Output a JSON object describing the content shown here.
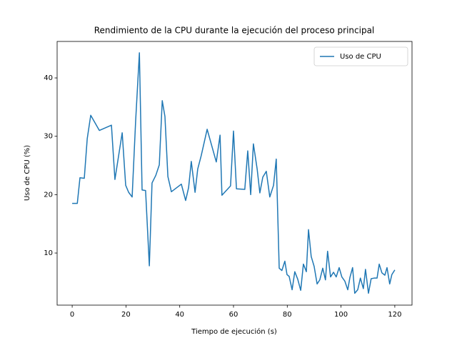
{
  "chart_data": {
    "type": "line",
    "title": "Rendimiento de la CPU durante la ejecución del proceso principal",
    "x_label": "Tiempo de ejecución (s)",
    "y_label": "Uso de CPU (%)",
    "x": [
      0,
      1.9,
      2.9,
      4.5,
      5.6,
      6.9,
      10.1,
      14.6,
      15.9,
      18.6,
      19.9,
      21.0,
      22.3,
      23.6,
      25.0,
      26.0,
      27.3,
      28.7,
      29.7,
      31.1,
      32.4,
      33.5,
      34.5,
      35.6,
      36.9,
      40.6,
      42.2,
      43.3,
      44.3,
      45.7,
      46.7,
      48.0,
      50.2,
      53.6,
      55.0,
      55.7,
      58.9,
      60.0,
      61.1,
      64.2,
      65.3,
      66.4,
      67.4,
      68.8,
      69.8,
      70.9,
      72.2,
      73.5,
      74.9,
      75.9,
      77.0,
      78.0,
      79.1,
      79.9,
      80.7,
      81.8,
      82.8,
      83.9,
      85.0,
      86.0,
      87.1,
      87.9,
      88.9,
      90.0,
      91.1,
      92.1,
      93.2,
      94.2,
      95.0,
      96.1,
      97.2,
      98.2,
      99.3,
      100.3,
      101.4,
      102.5,
      103.3,
      104.3,
      105.1,
      106.2,
      107.2,
      108.3,
      109.1,
      110.2,
      111.2,
      112.3,
      113.4,
      114.2,
      115.2,
      116.3,
      117.1,
      118.1,
      118.9,
      120.0
    ],
    "series": [
      {
        "name": "Uso de CPU",
        "color": "#1f77b4",
        "values": [
          18.5,
          18.5,
          22.9,
          22.8,
          29.6,
          33.6,
          31.0,
          31.9,
          22.6,
          30.6,
          21.6,
          20.4,
          19.6,
          32.6,
          44.3,
          20.8,
          20.7,
          7.8,
          22.0,
          23.3,
          25.1,
          36.1,
          33.4,
          23.1,
          20.5,
          21.8,
          19.0,
          21.2,
          25.7,
          20.4,
          24.4,
          26.7,
          31.2,
          25.6,
          30.2,
          19.9,
          21.5,
          30.9,
          21.0,
          20.9,
          27.5,
          20.0,
          28.7,
          24.4,
          20.3,
          23.0,
          24.0,
          19.6,
          21.6,
          26.1,
          7.4,
          7.0,
          8.6,
          6.3,
          6.0,
          3.7,
          6.8,
          5.5,
          3.6,
          8.1,
          6.8,
          14.0,
          9.4,
          7.7,
          4.7,
          5.4,
          7.4,
          5.4,
          10.3,
          5.9,
          6.7,
          5.9,
          7.5,
          5.9,
          5.2,
          3.7,
          5.8,
          7.5,
          3.1,
          3.7,
          5.7,
          3.9,
          7.2,
          3.1,
          5.6,
          5.7,
          5.7,
          8.1,
          6.6,
          6.2,
          7.5,
          4.7,
          6.3,
          7.1
        ]
      }
    ],
    "xlim": [
      -5.6,
      126.4
    ],
    "ylim": [
      1.07,
      46.25
    ],
    "xticks": [
      0,
      20,
      40,
      60,
      80,
      100,
      120
    ],
    "yticks": [
      10,
      20,
      30,
      40
    ],
    "grid": false,
    "legend": "upper right"
  }
}
